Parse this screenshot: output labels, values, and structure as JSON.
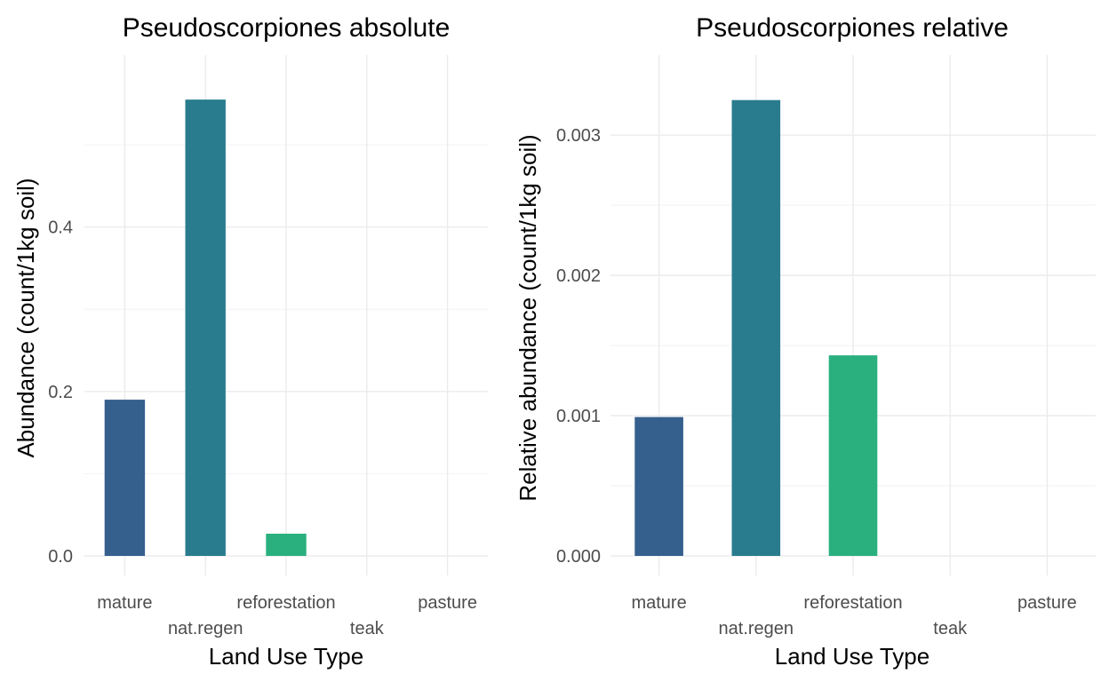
{
  "chart_data": [
    {
      "type": "bar",
      "title": "Pseudoscorpiones absolute",
      "xlabel": "Land Use Type",
      "ylabel": "Abundance (count/1kg soil)",
      "categories": [
        "mature",
        "nat.regen",
        "reforestation",
        "teak",
        "pasture"
      ],
      "values": [
        0.19,
        0.555,
        0.027,
        0,
        0
      ],
      "colors": [
        "#355f8d",
        "#287c8e",
        "#2ab07f",
        "#2ab07f",
        "#2ab07f"
      ],
      "ylim": [
        0,
        0.58
      ],
      "yticks": [
        0.0,
        0.2,
        0.4
      ],
      "ytick_labels": [
        "0.0",
        "0.2",
        "0.4"
      ],
      "grid": true,
      "legend": "none"
    },
    {
      "type": "bar",
      "title": "Pseudoscorpiones relative",
      "xlabel": "Land Use Type",
      "ylabel": "Relative abundance (count/1kg soil)",
      "categories": [
        "mature",
        "nat.regen",
        "reforestation",
        "teak",
        "pasture"
      ],
      "values": [
        0.00099,
        0.00325,
        0.00143,
        0,
        0
      ],
      "colors": [
        "#355f8d",
        "#287c8e",
        "#2ab07f",
        "#2ab07f",
        "#2ab07f"
      ],
      "ylim": [
        0,
        0.0034
      ],
      "yticks": [
        0.0,
        0.001,
        0.002,
        0.003
      ],
      "ytick_labels": [
        "0.000",
        "0.001",
        "0.002",
        "0.003"
      ],
      "grid": true,
      "legend": "none"
    }
  ]
}
